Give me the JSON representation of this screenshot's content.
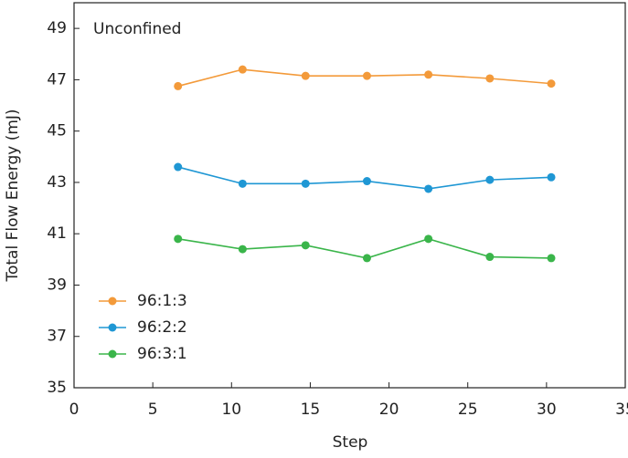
{
  "chart_data": {
    "type": "line",
    "annotation": "Unconfined",
    "x_label": "Step",
    "y_label": "Total Flow Energy (mJ)",
    "x": [
      6.6,
      10.7,
      14.7,
      18.6,
      22.5,
      26.4,
      30.3
    ],
    "series": [
      {
        "name": "96:1:3",
        "color": "#f39a3a",
        "values": [
          46.75,
          47.4,
          47.15,
          47.15,
          47.2,
          47.05,
          46.85
        ]
      },
      {
        "name": "96:2:2",
        "color": "#1f97d4",
        "values": [
          43.6,
          42.95,
          42.95,
          43.05,
          42.75,
          43.1,
          43.2
        ]
      },
      {
        "name": "96:3:1",
        "color": "#3ab54a",
        "values": [
          40.8,
          40.4,
          40.55,
          40.05,
          40.8,
          40.1,
          40.05
        ]
      }
    ],
    "xlim": [
      0,
      35
    ],
    "xticks": [
      0,
      5,
      10,
      15,
      20,
      25,
      30,
      35
    ],
    "ylim": [
      35,
      50
    ],
    "yticks": [
      35,
      37,
      39,
      41,
      43,
      45,
      47,
      49
    ],
    "legend": "lower left"
  }
}
